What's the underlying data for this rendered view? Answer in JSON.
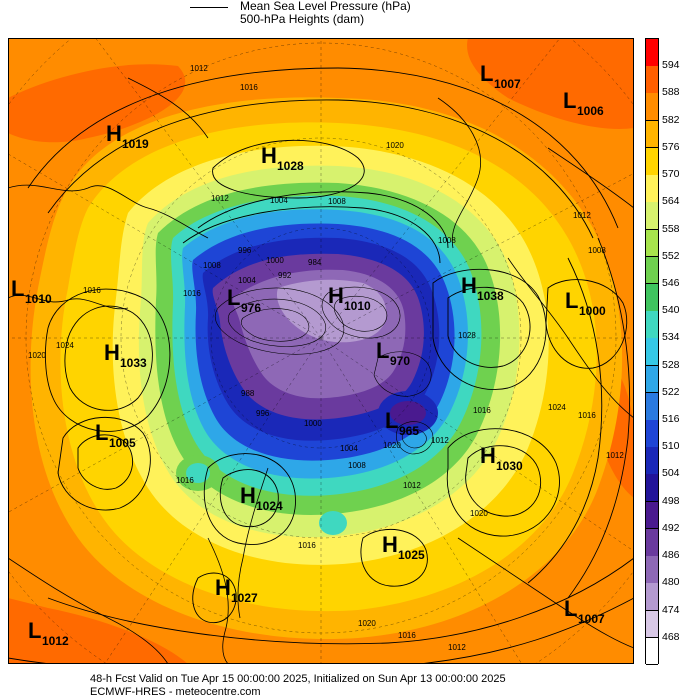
{
  "legend": {
    "line1": "Mean Sea Level Pressure (hPa)",
    "line2": "500-hPa Heights (dam)"
  },
  "colorbar": {
    "labels": [
      "594",
      "588",
      "582",
      "576",
      "570",
      "564",
      "558",
      "552",
      "546",
      "540",
      "534",
      "528",
      "522",
      "516",
      "510",
      "504",
      "498",
      "492",
      "486",
      "480",
      "474",
      "468"
    ],
    "colors": [
      "#ff0000",
      "#ff5f00",
      "#ff8c00",
      "#ffb400",
      "#ffd400",
      "#fff25a",
      "#d7f26e",
      "#a7e44d",
      "#6fd14f",
      "#3fc45f",
      "#3fd8c0",
      "#35c8e6",
      "#2ea7e8",
      "#2a7ae0",
      "#1e45d6",
      "#1a28b8",
      "#22149a",
      "#4a1a8f",
      "#6a3a9e",
      "#8e68b6",
      "#b49ad0",
      "#d8c8e6",
      "#ffffff"
    ]
  },
  "systems": [
    {
      "type": "H",
      "value": "1019"
    },
    {
      "type": "H",
      "value": "1028"
    },
    {
      "type": "L",
      "value": "1007"
    },
    {
      "type": "L",
      "value": "1006"
    },
    {
      "type": "L",
      "value": "1010"
    },
    {
      "type": "H",
      "value": "1033"
    },
    {
      "type": "L",
      "value": "1005"
    },
    {
      "type": "H",
      "value": "1038"
    },
    {
      "type": "L",
      "value": "1000"
    },
    {
      "type": "L",
      "value": "976"
    },
    {
      "type": "H",
      "value": "1010"
    },
    {
      "type": "L",
      "value": "970"
    },
    {
      "type": "L",
      "value": "965"
    },
    {
      "type": "H",
      "value": "1030"
    },
    {
      "type": "H",
      "value": "1024"
    },
    {
      "type": "H",
      "value": "1025"
    },
    {
      "type": "H",
      "value": "1027"
    },
    {
      "type": "L",
      "value": "1012"
    },
    {
      "type": "L",
      "value": "1007"
    }
  ],
  "isobar_labels": [
    "1012",
    "1016",
    "1020",
    "1004",
    "1008",
    "1012",
    "1016",
    "1020",
    "1024",
    "1028",
    "1016",
    "1012",
    "1008",
    "1008",
    "1012",
    "1016",
    "1020",
    "1016",
    "1012",
    "1020",
    "1016",
    "1012",
    "1024",
    "1020",
    "1016",
    "1008",
    "1004",
    "1000",
    "996",
    "992",
    "984",
    "988",
    "996",
    "1000",
    "1004",
    "1008",
    "1012",
    "1016"
  ],
  "footer": {
    "line1": "48-h Fcst Valid on Tue Apr 15 00:00:00 2025, Initialized on Sun Apr 13 00:00:00 2025",
    "line2": "ECMWF-HRES  - meteocentre.com"
  }
}
